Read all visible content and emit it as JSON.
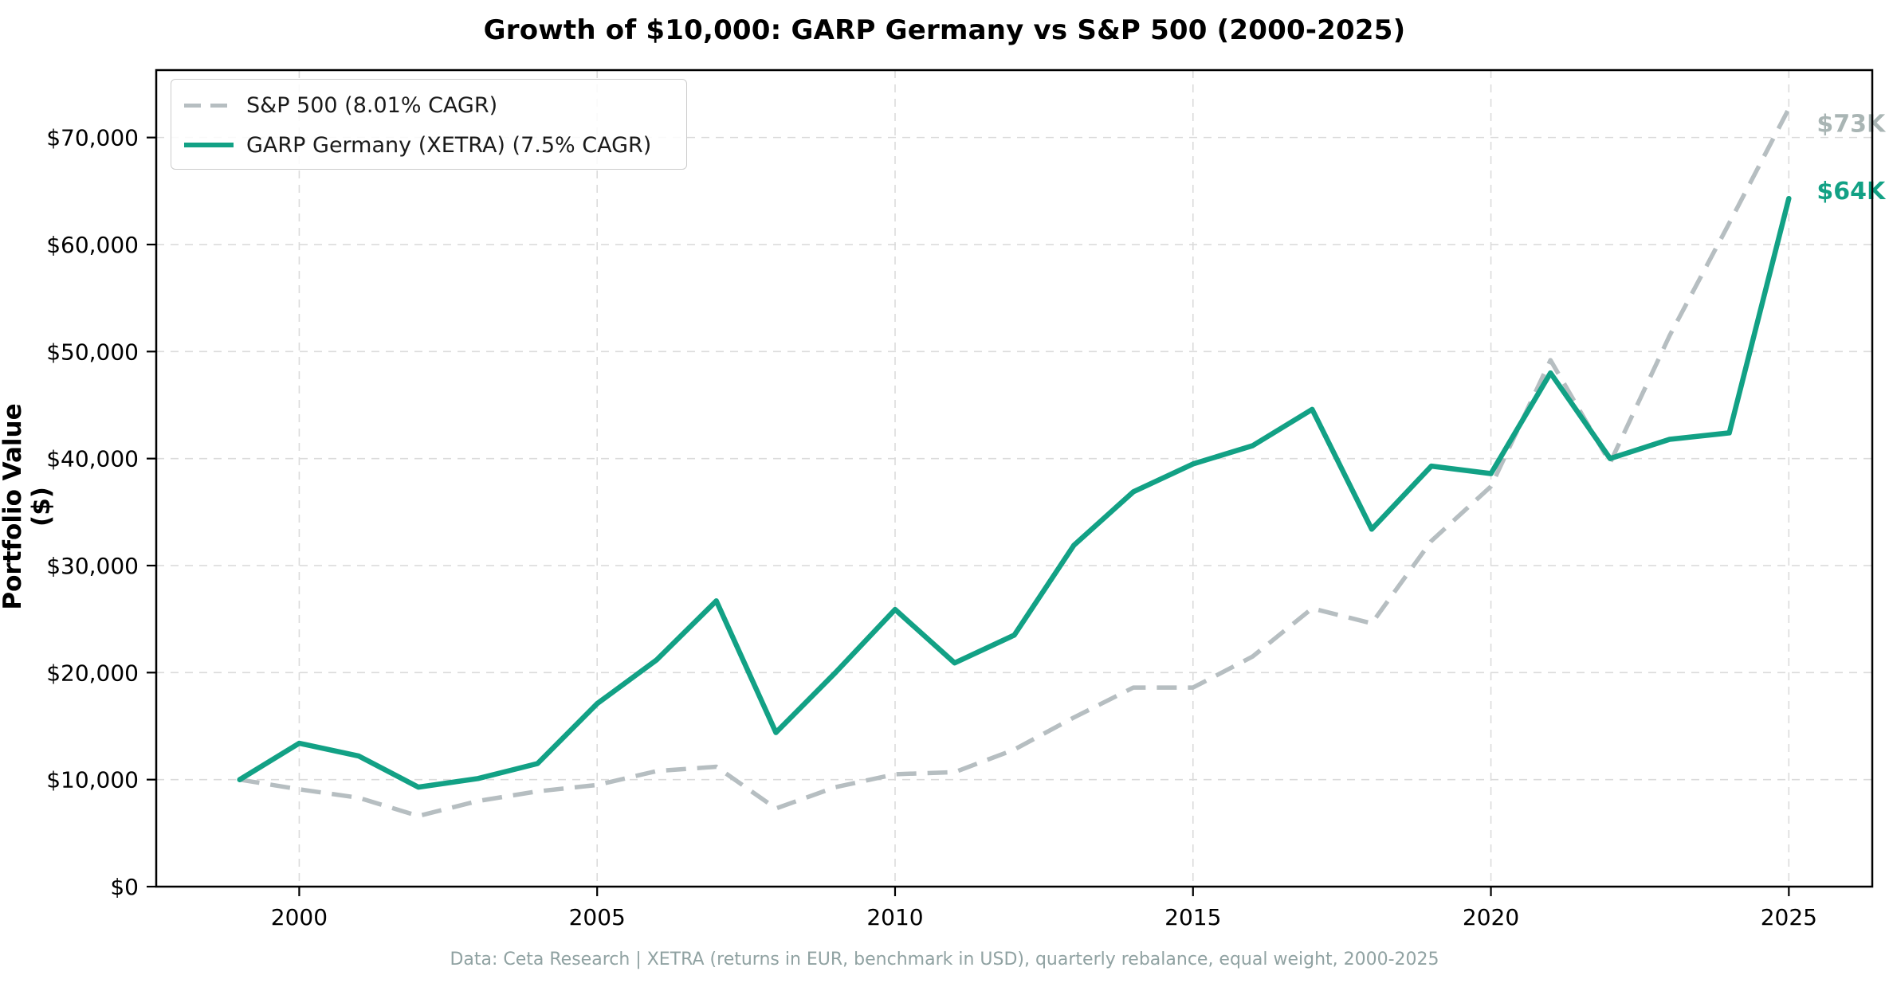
{
  "title": "Growth of $10,000: GARP Germany vs S&P 500 (2000-2025)",
  "footnote": "Data: Ceta Research | XETRA (returns in EUR, benchmark in USD), quarterly rebalance, equal weight, 2000-2025",
  "chart_data": {
    "type": "line",
    "title": "Growth of $10,000: GARP Germany vs S&P 500 (2000-2025)",
    "xlabel": "",
    "ylabel": "Portfolio Value ($)",
    "grid": true,
    "legend_position": "upper-left",
    "xlim": [
      1997.6,
      2026.4
    ],
    "ylim": [
      0,
      76300
    ],
    "x_ticks": [
      {
        "value": 2000,
        "label": "2000"
      },
      {
        "value": 2005,
        "label": "2005"
      },
      {
        "value": 2010,
        "label": "2010"
      },
      {
        "value": 2015,
        "label": "2015"
      },
      {
        "value": 2020,
        "label": "2020"
      },
      {
        "value": 2025,
        "label": "2025"
      }
    ],
    "y_ticks": [
      {
        "value": 0,
        "label": "$0"
      },
      {
        "value": 10000,
        "label": "$10,000"
      },
      {
        "value": 20000,
        "label": "$20,000"
      },
      {
        "value": 30000,
        "label": "$30,000"
      },
      {
        "value": 40000,
        "label": "$40,000"
      },
      {
        "value": 50000,
        "label": "$50,000"
      },
      {
        "value": 60000,
        "label": "$60,000"
      },
      {
        "value": 70000,
        "label": "$70,000"
      }
    ],
    "x": [
      1999,
      2000,
      2001,
      2002,
      2003,
      2004,
      2005,
      2006,
      2007,
      2008,
      2009,
      2010,
      2011,
      2012,
      2013,
      2014,
      2015,
      2016,
      2017,
      2018,
      2019,
      2020,
      2021,
      2022,
      2023,
      2024,
      2025
    ],
    "series": [
      {
        "name": "S&P 500 (8.01% CAGR)",
        "style": "dashed",
        "color": "#b6bec1",
        "end_label": "$73K",
        "end_label_color": "#a9b5b4",
        "values": [
          10000,
          9100,
          8300,
          6600,
          8000,
          8900,
          9500,
          10800,
          11200,
          7300,
          9300,
          10500,
          10700,
          12800,
          15800,
          18600,
          18600,
          21500,
          26000,
          24600,
          32300,
          37400,
          49200,
          39600,
          51500,
          62000,
          72700
        ]
      },
      {
        "name": "GARP Germany (XETRA) (7.5% CAGR)",
        "style": "solid",
        "color": "#12a185",
        "end_label": "$64K",
        "end_label_color": "#12a185",
        "values": [
          10000,
          13400,
          12200,
          9300,
          10100,
          11500,
          17100,
          21200,
          26700,
          14400,
          20000,
          25900,
          20900,
          23500,
          31900,
          36900,
          39500,
          41200,
          44600,
          33400,
          39300,
          38600,
          48000,
          40000,
          41800,
          42400,
          64300
        ]
      }
    ]
  }
}
